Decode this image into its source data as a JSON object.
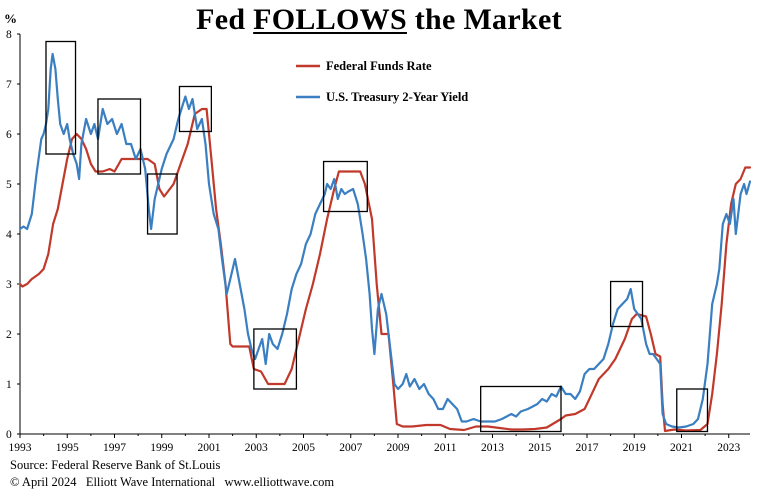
{
  "title": {
    "before": "Fed ",
    "emphasis": "FOLLOWS",
    "after": " the Market"
  },
  "footer": {
    "source": "Source: Federal Reserve Bank of St.Louis",
    "copyright": "© April 2024   Elliott Wave International   www.elliottwave.com"
  },
  "colors": {
    "fed_funds": "#c0392b",
    "treasury": "#3a7fc1",
    "box": "#000000",
    "axis": "#000000"
  },
  "chart_data": {
    "type": "line",
    "title": "Fed FOLLOWS the Market",
    "xlabel": "",
    "ylabel": "%",
    "xlim": [
      1993,
      2023.9
    ],
    "ylim": [
      0,
      8
    ],
    "x_ticks": [
      1993,
      1995,
      1997,
      1999,
      2001,
      2003,
      2005,
      2007,
      2009,
      2011,
      2013,
      2015,
      2017,
      2019,
      2021,
      2023
    ],
    "y_ticks": [
      0,
      1,
      2,
      3,
      4,
      5,
      6,
      7,
      8
    ],
    "legend_position": "top-center",
    "series": [
      {
        "name": "Federal Funds Rate",
        "color": "#c0392b",
        "points": [
          [
            1993.0,
            3.0
          ],
          [
            1993.1,
            2.95
          ],
          [
            1993.3,
            3.0
          ],
          [
            1993.5,
            3.1
          ],
          [
            1993.8,
            3.2
          ],
          [
            1994.0,
            3.3
          ],
          [
            1994.2,
            3.6
          ],
          [
            1994.4,
            4.2
          ],
          [
            1994.6,
            4.5
          ],
          [
            1994.8,
            5.0
          ],
          [
            1995.0,
            5.5
          ],
          [
            1995.2,
            5.9
          ],
          [
            1995.4,
            6.0
          ],
          [
            1995.6,
            5.9
          ],
          [
            1995.8,
            5.7
          ],
          [
            1996.0,
            5.4
          ],
          [
            1996.2,
            5.25
          ],
          [
            1996.5,
            5.25
          ],
          [
            1996.8,
            5.3
          ],
          [
            1997.0,
            5.25
          ],
          [
            1997.3,
            5.5
          ],
          [
            1997.6,
            5.5
          ],
          [
            1998.0,
            5.5
          ],
          [
            1998.4,
            5.5
          ],
          [
            1998.7,
            5.4
          ],
          [
            1998.9,
            4.9
          ],
          [
            1999.1,
            4.75
          ],
          [
            1999.5,
            5.0
          ],
          [
            1999.8,
            5.4
          ],
          [
            2000.1,
            5.8
          ],
          [
            2000.4,
            6.4
          ],
          [
            2000.7,
            6.5
          ],
          [
            2000.9,
            6.5
          ],
          [
            2001.1,
            5.5
          ],
          [
            2001.3,
            4.5
          ],
          [
            2001.5,
            3.8
          ],
          [
            2001.7,
            3.0
          ],
          [
            2001.9,
            1.8
          ],
          [
            2002.0,
            1.75
          ],
          [
            2002.3,
            1.75
          ],
          [
            2002.7,
            1.75
          ],
          [
            2002.9,
            1.3
          ],
          [
            2003.2,
            1.25
          ],
          [
            2003.5,
            1.0
          ],
          [
            2003.8,
            1.0
          ],
          [
            2004.2,
            1.0
          ],
          [
            2004.5,
            1.3
          ],
          [
            2004.8,
            1.9
          ],
          [
            2005.1,
            2.5
          ],
          [
            2005.4,
            3.0
          ],
          [
            2005.7,
            3.6
          ],
          [
            2006.0,
            4.3
          ],
          [
            2006.3,
            4.9
          ],
          [
            2006.5,
            5.25
          ],
          [
            2007.0,
            5.25
          ],
          [
            2007.4,
            5.25
          ],
          [
            2007.6,
            5.0
          ],
          [
            2007.9,
            4.3
          ],
          [
            2008.1,
            3.0
          ],
          [
            2008.3,
            2.0
          ],
          [
            2008.6,
            2.0
          ],
          [
            2008.8,
            1.0
          ],
          [
            2008.95,
            0.2
          ],
          [
            2009.2,
            0.15
          ],
          [
            2009.6,
            0.15
          ],
          [
            2010.2,
            0.18
          ],
          [
            2010.8,
            0.18
          ],
          [
            2011.2,
            0.1
          ],
          [
            2011.8,
            0.08
          ],
          [
            2012.3,
            0.15
          ],
          [
            2012.8,
            0.15
          ],
          [
            2013.3,
            0.12
          ],
          [
            2013.8,
            0.09
          ],
          [
            2014.3,
            0.09
          ],
          [
            2014.8,
            0.1
          ],
          [
            2015.3,
            0.13
          ],
          [
            2015.9,
            0.3
          ],
          [
            2016.1,
            0.37
          ],
          [
            2016.5,
            0.4
          ],
          [
            2016.9,
            0.5
          ],
          [
            2017.1,
            0.7
          ],
          [
            2017.5,
            1.1
          ],
          [
            2017.9,
            1.3
          ],
          [
            2018.2,
            1.5
          ],
          [
            2018.6,
            1.9
          ],
          [
            2018.9,
            2.3
          ],
          [
            2019.1,
            2.4
          ],
          [
            2019.5,
            2.35
          ],
          [
            2019.7,
            2.0
          ],
          [
            2019.9,
            1.6
          ],
          [
            2020.1,
            1.55
          ],
          [
            2020.2,
            0.6
          ],
          [
            2020.3,
            0.06
          ],
          [
            2020.7,
            0.09
          ],
          [
            2021.2,
            0.07
          ],
          [
            2021.8,
            0.08
          ],
          [
            2022.1,
            0.2
          ],
          [
            2022.3,
            0.8
          ],
          [
            2022.5,
            1.6
          ],
          [
            2022.7,
            2.6
          ],
          [
            2022.9,
            3.8
          ],
          [
            2023.1,
            4.6
          ],
          [
            2023.3,
            5.0
          ],
          [
            2023.5,
            5.1
          ],
          [
            2023.7,
            5.33
          ],
          [
            2023.9,
            5.33
          ]
        ]
      },
      {
        "name": "U.S. Treasury 2-Year Yield",
        "color": "#3a7fc1",
        "points": [
          [
            1993.0,
            4.1
          ],
          [
            1993.15,
            4.15
          ],
          [
            1993.3,
            4.1
          ],
          [
            1993.5,
            4.4
          ],
          [
            1993.7,
            5.2
          ],
          [
            1993.9,
            5.9
          ],
          [
            1994.0,
            6.0
          ],
          [
            1994.1,
            6.2
          ],
          [
            1994.2,
            6.5
          ],
          [
            1994.3,
            7.3
          ],
          [
            1994.38,
            7.6
          ],
          [
            1994.5,
            7.3
          ],
          [
            1994.6,
            6.7
          ],
          [
            1994.7,
            6.2
          ],
          [
            1994.85,
            6.0
          ],
          [
            1995.0,
            6.2
          ],
          [
            1995.1,
            5.9
          ],
          [
            1995.25,
            5.6
          ],
          [
            1995.4,
            5.4
          ],
          [
            1995.5,
            5.1
          ],
          [
            1995.6,
            5.8
          ],
          [
            1995.8,
            6.3
          ],
          [
            1996.0,
            6.0
          ],
          [
            1996.15,
            6.2
          ],
          [
            1996.3,
            5.9
          ],
          [
            1996.5,
            6.5
          ],
          [
            1996.7,
            6.2
          ],
          [
            1996.9,
            6.3
          ],
          [
            1997.1,
            6.0
          ],
          [
            1997.3,
            6.2
          ],
          [
            1997.5,
            5.8
          ],
          [
            1997.7,
            5.8
          ],
          [
            1997.9,
            5.5
          ],
          [
            1998.1,
            5.7
          ],
          [
            1998.3,
            5.3
          ],
          [
            1998.45,
            4.5
          ],
          [
            1998.55,
            4.1
          ],
          [
            1998.7,
            4.7
          ],
          [
            1998.85,
            5.0
          ],
          [
            1999.0,
            5.3
          ],
          [
            1999.2,
            5.6
          ],
          [
            1999.5,
            5.9
          ],
          [
            1999.7,
            6.3
          ],
          [
            1999.9,
            6.6
          ],
          [
            2000.0,
            6.75
          ],
          [
            2000.15,
            6.5
          ],
          [
            2000.3,
            6.7
          ],
          [
            2000.5,
            6.1
          ],
          [
            2000.7,
            6.3
          ],
          [
            2000.85,
            5.8
          ],
          [
            2001.0,
            5.0
          ],
          [
            2001.2,
            4.4
          ],
          [
            2001.4,
            4.1
          ],
          [
            2001.55,
            3.5
          ],
          [
            2001.75,
            2.8
          ],
          [
            2001.9,
            3.1
          ],
          [
            2002.1,
            3.5
          ],
          [
            2002.3,
            3.0
          ],
          [
            2002.5,
            2.5
          ],
          [
            2002.65,
            2.0
          ],
          [
            2002.8,
            1.7
          ],
          [
            2002.95,
            1.5
          ],
          [
            2003.1,
            1.7
          ],
          [
            2003.25,
            1.9
          ],
          [
            2003.4,
            1.4
          ],
          [
            2003.55,
            2.0
          ],
          [
            2003.7,
            1.8
          ],
          [
            2003.9,
            1.7
          ],
          [
            2004.1,
            2.0
          ],
          [
            2004.3,
            2.4
          ],
          [
            2004.5,
            2.9
          ],
          [
            2004.7,
            3.2
          ],
          [
            2004.9,
            3.4
          ],
          [
            2005.1,
            3.8
          ],
          [
            2005.3,
            4.0
          ],
          [
            2005.5,
            4.4
          ],
          [
            2005.7,
            4.6
          ],
          [
            2005.9,
            4.8
          ],
          [
            2006.0,
            5.0
          ],
          [
            2006.15,
            4.9
          ],
          [
            2006.3,
            5.1
          ],
          [
            2006.45,
            4.7
          ],
          [
            2006.6,
            4.9
          ],
          [
            2006.75,
            4.8
          ],
          [
            2006.9,
            4.85
          ],
          [
            2007.1,
            4.9
          ],
          [
            2007.3,
            4.6
          ],
          [
            2007.5,
            4.0
          ],
          [
            2007.65,
            3.5
          ],
          [
            2007.8,
            2.8
          ],
          [
            2007.9,
            2.1
          ],
          [
            2008.0,
            1.6
          ],
          [
            2008.15,
            2.5
          ],
          [
            2008.3,
            2.8
          ],
          [
            2008.5,
            2.4
          ],
          [
            2008.7,
            1.6
          ],
          [
            2008.85,
            1.0
          ],
          [
            2009.0,
            0.9
          ],
          [
            2009.2,
            1.0
          ],
          [
            2009.35,
            1.2
          ],
          [
            2009.5,
            0.95
          ],
          [
            2009.7,
            1.1
          ],
          [
            2009.9,
            0.9
          ],
          [
            2010.1,
            1.0
          ],
          [
            2010.3,
            0.8
          ],
          [
            2010.5,
            0.7
          ],
          [
            2010.7,
            0.5
          ],
          [
            2010.9,
            0.5
          ],
          [
            2011.1,
            0.7
          ],
          [
            2011.3,
            0.6
          ],
          [
            2011.5,
            0.5
          ],
          [
            2011.7,
            0.25
          ],
          [
            2011.9,
            0.25
          ],
          [
            2012.2,
            0.3
          ],
          [
            2012.5,
            0.25
          ],
          [
            2012.8,
            0.25
          ],
          [
            2013.1,
            0.25
          ],
          [
            2013.4,
            0.3
          ],
          [
            2013.6,
            0.35
          ],
          [
            2013.8,
            0.4
          ],
          [
            2014.0,
            0.35
          ],
          [
            2014.2,
            0.45
          ],
          [
            2014.5,
            0.5
          ],
          [
            2014.7,
            0.55
          ],
          [
            2014.9,
            0.6
          ],
          [
            2015.1,
            0.7
          ],
          [
            2015.3,
            0.65
          ],
          [
            2015.5,
            0.8
          ],
          [
            2015.7,
            0.75
          ],
          [
            2015.9,
            0.95
          ],
          [
            2016.1,
            0.8
          ],
          [
            2016.3,
            0.8
          ],
          [
            2016.5,
            0.7
          ],
          [
            2016.7,
            0.85
          ],
          [
            2016.9,
            1.2
          ],
          [
            2017.1,
            1.3
          ],
          [
            2017.3,
            1.3
          ],
          [
            2017.5,
            1.4
          ],
          [
            2017.7,
            1.5
          ],
          [
            2017.9,
            1.8
          ],
          [
            2018.1,
            2.2
          ],
          [
            2018.3,
            2.5
          ],
          [
            2018.5,
            2.6
          ],
          [
            2018.7,
            2.7
          ],
          [
            2018.85,
            2.9
          ],
          [
            2019.0,
            2.5
          ],
          [
            2019.15,
            2.4
          ],
          [
            2019.3,
            2.3
          ],
          [
            2019.5,
            1.8
          ],
          [
            2019.65,
            1.6
          ],
          [
            2019.8,
            1.6
          ],
          [
            2019.95,
            1.5
          ],
          [
            2020.1,
            1.4
          ],
          [
            2020.2,
            0.4
          ],
          [
            2020.35,
            0.2
          ],
          [
            2020.6,
            0.15
          ],
          [
            2020.9,
            0.13
          ],
          [
            2021.2,
            0.15
          ],
          [
            2021.5,
            0.2
          ],
          [
            2021.7,
            0.3
          ],
          [
            2021.9,
            0.7
          ],
          [
            2022.1,
            1.4
          ],
          [
            2022.3,
            2.6
          ],
          [
            2022.5,
            3.0
          ],
          [
            2022.6,
            3.3
          ],
          [
            2022.75,
            4.2
          ],
          [
            2022.9,
            4.4
          ],
          [
            2023.05,
            4.2
          ],
          [
            2023.2,
            4.7
          ],
          [
            2023.3,
            4.0
          ],
          [
            2023.5,
            4.8
          ],
          [
            2023.65,
            5.0
          ],
          [
            2023.75,
            4.8
          ],
          [
            2023.9,
            5.05
          ]
        ]
      }
    ],
    "annotations": [
      {
        "type": "box",
        "x": [
          1994.1,
          1995.35
        ],
        "y": [
          5.6,
          7.85
        ]
      },
      {
        "type": "box",
        "x": [
          1996.3,
          1998.1
        ],
        "y": [
          5.2,
          6.7
        ]
      },
      {
        "type": "box",
        "x": [
          1998.4,
          1999.65
        ],
        "y": [
          4.0,
          5.2
        ]
      },
      {
        "type": "box",
        "x": [
          1999.75,
          2001.1
        ],
        "y": [
          6.05,
          6.95
        ]
      },
      {
        "type": "box",
        "x": [
          2002.9,
          2004.7
        ],
        "y": [
          0.9,
          2.1
        ]
      },
      {
        "type": "box",
        "x": [
          2005.85,
          2007.7
        ],
        "y": [
          4.45,
          5.45
        ]
      },
      {
        "type": "box",
        "x": [
          2012.5,
          2015.9
        ],
        "y": [
          0.05,
          0.95
        ]
      },
      {
        "type": "box",
        "x": [
          2018.0,
          2019.35
        ],
        "y": [
          2.15,
          3.05
        ]
      },
      {
        "type": "box",
        "x": [
          2020.8,
          2022.1
        ],
        "y": [
          0.05,
          0.9
        ]
      }
    ]
  }
}
